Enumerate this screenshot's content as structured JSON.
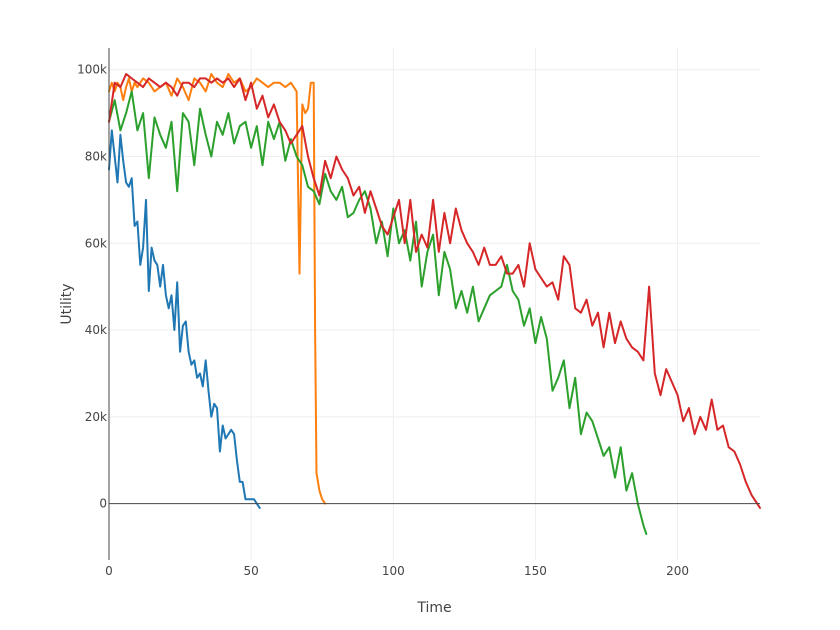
{
  "chart_data": {
    "type": "line",
    "title": "",
    "xlabel": "Time",
    "ylabel": "Utility",
    "xlim": [
      0,
      229
    ],
    "ylim": [
      -13000,
      105000
    ],
    "grid": true,
    "legend": "none",
    "x_ticks": [
      {
        "value": 0,
        "label": "0"
      },
      {
        "value": 50,
        "label": "50"
      },
      {
        "value": 100,
        "label": "100"
      },
      {
        "value": 150,
        "label": "150"
      },
      {
        "value": 200,
        "label": "200"
      }
    ],
    "y_ticks": [
      {
        "value": 0,
        "label": "0"
      },
      {
        "value": 20000,
        "label": "20k"
      },
      {
        "value": 40000,
        "label": "40k"
      },
      {
        "value": 60000,
        "label": "60k"
      },
      {
        "value": 80000,
        "label": "80k"
      },
      {
        "value": 100000,
        "label": "100k"
      }
    ],
    "series": [
      {
        "color": "#1f77b4",
        "x": [
          0,
          1,
          2,
          3,
          4,
          5,
          6,
          7,
          8,
          9,
          10,
          11,
          12,
          13,
          14,
          15,
          16,
          17,
          18,
          19,
          20,
          21,
          22,
          23,
          24,
          25,
          26,
          27,
          28,
          29,
          30,
          31,
          32,
          33,
          34,
          35,
          36,
          37,
          38,
          39,
          40,
          41,
          42,
          43,
          44,
          45,
          46,
          47,
          48,
          49,
          50,
          51,
          52,
          53
        ],
        "y": [
          77000,
          86000,
          80000,
          74000,
          85000,
          79000,
          74000,
          73000,
          75000,
          64000,
          65000,
          55000,
          59000,
          70000,
          49000,
          59000,
          56000,
          55000,
          50000,
          55000,
          48000,
          45000,
          48000,
          40000,
          51000,
          35000,
          41000,
          42000,
          35000,
          32000,
          33000,
          29000,
          30000,
          27000,
          33000,
          26000,
          20000,
          23000,
          22000,
          12000,
          18000,
          15000,
          16000,
          17000,
          16000,
          10000,
          5000,
          5000,
          1000,
          1000,
          1000,
          1000,
          0,
          -1000
        ]
      },
      {
        "color": "#ff7f0e",
        "x": [
          0,
          1,
          2,
          3,
          4,
          5,
          6,
          7,
          8,
          9,
          10,
          12,
          14,
          16,
          18,
          20,
          22,
          24,
          26,
          28,
          30,
          32,
          34,
          36,
          38,
          40,
          42,
          44,
          46,
          48,
          50,
          52,
          54,
          56,
          58,
          60,
          62,
          64,
          66,
          67,
          68,
          69,
          70,
          71,
          72,
          72.5,
          73,
          74,
          75,
          76
        ],
        "y": [
          95000,
          97000,
          95000,
          97000,
          96000,
          93000,
          96000,
          98000,
          95000,
          97000,
          96000,
          98000,
          97000,
          95000,
          96000,
          97000,
          94000,
          98000,
          96000,
          93000,
          98000,
          97000,
          95000,
          99000,
          97000,
          96000,
          99000,
          97000,
          98000,
          95000,
          96000,
          98000,
          97000,
          96000,
          97000,
          97000,
          96000,
          97000,
          95000,
          53000,
          92000,
          90000,
          91000,
          97000,
          97000,
          40000,
          7000,
          3000,
          1000,
          0
        ]
      },
      {
        "color": "#2ca02c",
        "x": [
          0,
          2,
          4,
          6,
          8,
          10,
          12,
          14,
          16,
          18,
          20,
          22,
          24,
          26,
          28,
          30,
          32,
          34,
          36,
          38,
          40,
          42,
          44,
          46,
          48,
          50,
          52,
          54,
          56,
          58,
          60,
          62,
          64,
          66,
          68,
          70,
          72,
          74,
          76,
          78,
          80,
          82,
          84,
          86,
          88,
          90,
          92,
          94,
          96,
          98,
          100,
          102,
          104,
          106,
          108,
          110,
          112,
          114,
          116,
          118,
          120,
          122,
          124,
          126,
          128,
          130,
          132,
          134,
          136,
          138,
          140,
          142,
          144,
          146,
          148,
          150,
          152,
          154,
          156,
          158,
          160,
          162,
          164,
          166,
          168,
          170,
          172,
          174,
          176,
          178,
          180,
          182,
          184,
          186,
          188,
          189
        ],
        "y": [
          88000,
          93000,
          86000,
          90000,
          95000,
          86000,
          90000,
          75000,
          89000,
          85000,
          82000,
          88000,
          72000,
          90000,
          88000,
          78000,
          91000,
          85000,
          80000,
          88000,
          85000,
          90000,
          83000,
          87000,
          88000,
          82000,
          87000,
          78000,
          88000,
          84000,
          88000,
          79000,
          84000,
          80000,
          78000,
          73000,
          72000,
          69000,
          76000,
          72000,
          70000,
          73000,
          66000,
          67000,
          70000,
          72000,
          68000,
          60000,
          65000,
          57000,
          68000,
          60000,
          63000,
          56000,
          65000,
          50000,
          58000,
          62000,
          48000,
          58000,
          54000,
          45000,
          49000,
          44000,
          50000,
          42000,
          45000,
          48000,
          49000,
          50000,
          55000,
          49000,
          47000,
          41000,
          45000,
          37000,
          43000,
          38000,
          26000,
          29000,
          33000,
          22000,
          29000,
          16000,
          21000,
          19000,
          15000,
          11000,
          13000,
          6000,
          13000,
          3000,
          7000,
          0,
          -5000,
          -7000
        ]
      },
      {
        "color": "#d62728",
        "x": [
          0,
          2,
          4,
          6,
          8,
          10,
          12,
          14,
          16,
          18,
          20,
          22,
          24,
          26,
          28,
          30,
          32,
          34,
          36,
          38,
          40,
          42,
          44,
          46,
          48,
          50,
          52,
          54,
          56,
          58,
          60,
          62,
          64,
          66,
          68,
          70,
          72,
          74,
          76,
          78,
          80,
          82,
          84,
          86,
          88,
          90,
          92,
          94,
          96,
          98,
          100,
          102,
          104,
          106,
          108,
          110,
          112,
          114,
          116,
          118,
          120,
          122,
          124,
          126,
          128,
          130,
          132,
          134,
          136,
          138,
          140,
          142,
          144,
          146,
          148,
          150,
          152,
          154,
          156,
          158,
          160,
          162,
          164,
          166,
          168,
          170,
          172,
          174,
          176,
          178,
          180,
          182,
          184,
          186,
          188,
          190,
          192,
          194,
          196,
          198,
          200,
          202,
          204,
          206,
          208,
          210,
          212,
          214,
          216,
          218,
          220,
          222,
          224,
          226,
          228,
          229
        ],
        "y": [
          88000,
          97000,
          96000,
          99000,
          98000,
          97000,
          96000,
          98000,
          97000,
          96000,
          97000,
          96000,
          94000,
          97000,
          97000,
          96000,
          98000,
          98000,
          97000,
          98000,
          97000,
          98000,
          96000,
          98000,
          93000,
          97000,
          91000,
          94000,
          89000,
          92000,
          88000,
          86000,
          83000,
          85000,
          87000,
          80000,
          75000,
          71000,
          79000,
          75000,
          80000,
          77000,
          75000,
          71000,
          73000,
          67000,
          72000,
          68000,
          64000,
          62000,
          66000,
          70000,
          60000,
          70000,
          58000,
          62000,
          59000,
          70000,
          58000,
          67000,
          60000,
          68000,
          63000,
          60000,
          58000,
          55000,
          59000,
          55000,
          55000,
          57000,
          53000,
          53000,
          55000,
          50000,
          60000,
          54000,
          52000,
          50000,
          51000,
          47000,
          57000,
          55000,
          45000,
          44000,
          47000,
          41000,
          44000,
          36000,
          44000,
          37000,
          42000,
          38000,
          36000,
          35000,
          33000,
          50000,
          30000,
          25000,
          31000,
          28000,
          25000,
          19000,
          22000,
          16000,
          20000,
          17000,
          24000,
          17000,
          18000,
          13000,
          12000,
          9000,
          5000,
          2000,
          0,
          -1000
        ]
      }
    ]
  }
}
